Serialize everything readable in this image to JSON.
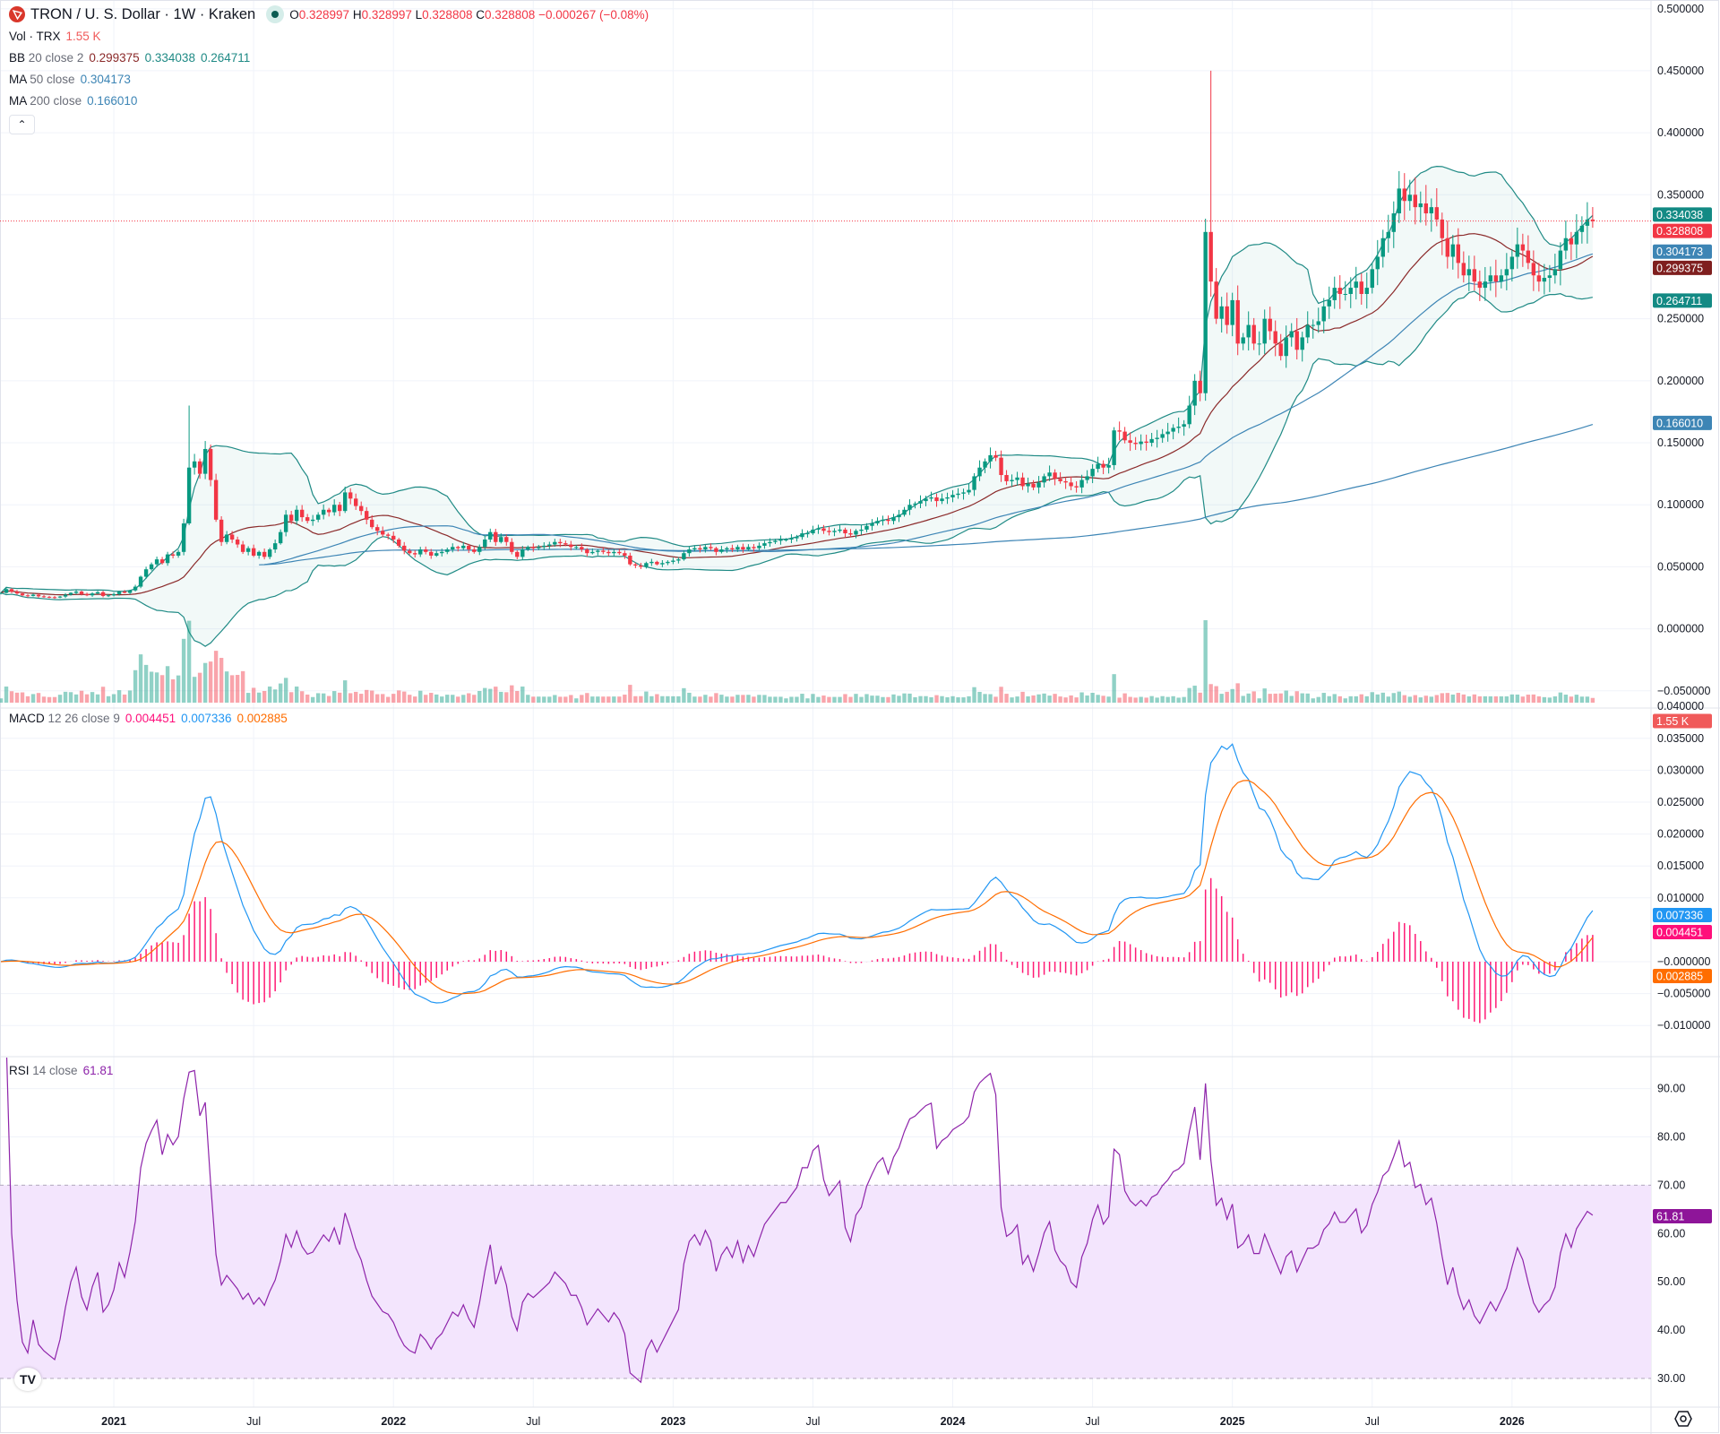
{
  "header": {
    "symbol": "TRON / U. S. Dollar · 1W · Kraken",
    "open_label": "O",
    "open": "0.328997",
    "high_label": "H",
    "high": "0.328997",
    "low_label": "L",
    "low": "0.328808",
    "close_label": "C",
    "close": "0.328808",
    "change": "−0.000267 (−0.08%)"
  },
  "indicators": {
    "vol": {
      "label": "Vol · TRX",
      "value": "1.55 K"
    },
    "bb": {
      "label": "BB",
      "params": "20 close 2",
      "basis": "0.299375",
      "upper": "0.334038",
      "lower": "0.264711"
    },
    "ma50": {
      "label": "MA",
      "params": "50 close",
      "value": "0.304173"
    },
    "ma200": {
      "label": "MA",
      "params": "200 close",
      "value": "0.166010"
    },
    "macd": {
      "label": "MACD",
      "params": "12 26 close 9",
      "hist": "0.004451",
      "macd": "0.007336",
      "signal": "0.002885"
    },
    "rsi": {
      "label": "RSI",
      "params": "14 close",
      "value": "61.81"
    }
  },
  "colors": {
    "up": "#089981",
    "down": "#f23645",
    "bb_basis": "#8b2a2a",
    "bb_band": "#1f8a85",
    "ma50": "#3d85b5",
    "ma200": "#3d85b5",
    "macd": "#2196f3",
    "signal": "#ff6d00",
    "hist": "#ff1a75",
    "rsi": "#8e24aa",
    "rsi_band": "#f3e5fd"
  },
  "chart_data": [
    {
      "type": "candlestick",
      "interval": "1W",
      "x_start": "2020-08-10",
      "yscale": "linear",
      "ylim": [
        -0.05,
        0.5
      ],
      "y_ticks": [
        "0.500000",
        "0.450000",
        "0.400000",
        "0.350000",
        "0.250000",
        "0.200000",
        "0.150000",
        "0.100000",
        "0.050000",
        "0.000000",
        "−0.050000"
      ],
      "y_tick_values": [
        0.5,
        0.45,
        0.4,
        0.35,
        0.25,
        0.2,
        0.15,
        0.1,
        0.05,
        0,
        -0.05
      ],
      "x_ticks": [
        {
          "label": "2021",
          "date": "2021-01-04"
        },
        {
          "label": "Jul",
          "date": "2021-07-05"
        },
        {
          "label": "2022",
          "date": "2022-01-03"
        },
        {
          "label": "Jul",
          "date": "2022-07-04"
        },
        {
          "label": "2023",
          "date": "2023-01-02"
        },
        {
          "label": "Jul",
          "date": "2023-07-03"
        },
        {
          "label": "2024",
          "date": "2024-01-01"
        },
        {
          "label": "Jul",
          "date": "2024-07-01"
        },
        {
          "label": "2025",
          "date": "2024-12-30"
        },
        {
          "label": "Jul",
          "date": "2025-06-30"
        },
        {
          "label": "2026",
          "date": "2025-12-29"
        }
      ],
      "closes": [
        0.029,
        0.032,
        0.03,
        0.0285,
        0.027,
        0.0265,
        0.0275,
        0.0262,
        0.0258,
        0.0255,
        0.0252,
        0.026,
        0.0275,
        0.029,
        0.03,
        0.028,
        0.027,
        0.0285,
        0.0295,
        0.0265,
        0.027,
        0.028,
        0.03,
        0.029,
        0.031,
        0.034,
        0.042,
        0.048,
        0.052,
        0.056,
        0.053,
        0.06,
        0.059,
        0.062,
        0.085,
        0.13,
        0.135,
        0.125,
        0.145,
        0.12,
        0.088,
        0.07,
        0.076,
        0.072,
        0.068,
        0.062,
        0.065,
        0.059,
        0.062,
        0.058,
        0.064,
        0.069,
        0.078,
        0.092,
        0.087,
        0.096,
        0.09,
        0.087,
        0.088,
        0.092,
        0.096,
        0.094,
        0.1,
        0.095,
        0.11,
        0.105,
        0.099,
        0.095,
        0.088,
        0.082,
        0.079,
        0.076,
        0.075,
        0.072,
        0.067,
        0.063,
        0.061,
        0.06,
        0.064,
        0.062,
        0.059,
        0.061,
        0.062,
        0.064,
        0.066,
        0.065,
        0.067,
        0.064,
        0.062,
        0.066,
        0.072,
        0.078,
        0.07,
        0.074,
        0.07,
        0.062,
        0.058,
        0.064,
        0.066,
        0.065,
        0.066,
        0.067,
        0.068,
        0.07,
        0.069,
        0.068,
        0.066,
        0.066,
        0.064,
        0.061,
        0.062,
        0.063,
        0.062,
        0.061,
        0.062,
        0.061,
        0.059,
        0.052,
        0.051,
        0.05,
        0.053,
        0.054,
        0.052,
        0.053,
        0.054,
        0.055,
        0.056,
        0.061,
        0.064,
        0.065,
        0.064,
        0.066,
        0.065,
        0.062,
        0.064,
        0.065,
        0.064,
        0.066,
        0.064,
        0.066,
        0.065,
        0.067,
        0.069,
        0.07,
        0.071,
        0.072,
        0.072,
        0.073,
        0.074,
        0.077,
        0.077,
        0.08,
        0.081,
        0.079,
        0.078,
        0.079,
        0.08,
        0.077,
        0.076,
        0.079,
        0.08,
        0.083,
        0.085,
        0.087,
        0.088,
        0.087,
        0.09,
        0.092,
        0.096,
        0.1,
        0.101,
        0.103,
        0.105,
        0.106,
        0.103,
        0.105,
        0.106,
        0.108,
        0.109,
        0.11,
        0.112,
        0.123,
        0.13,
        0.135,
        0.14,
        0.138,
        0.124,
        0.119,
        0.12,
        0.122,
        0.115,
        0.117,
        0.114,
        0.118,
        0.123,
        0.126,
        0.121,
        0.119,
        0.118,
        0.115,
        0.114,
        0.12,
        0.123,
        0.129,
        0.133,
        0.13,
        0.132,
        0.16,
        0.159,
        0.152,
        0.15,
        0.149,
        0.151,
        0.15,
        0.153,
        0.154,
        0.157,
        0.159,
        0.162,
        0.163,
        0.165,
        0.18,
        0.2,
        0.19,
        0.32,
        0.28,
        0.25,
        0.26,
        0.245,
        0.265,
        0.23,
        0.235,
        0.245,
        0.23,
        0.23,
        0.25,
        0.24,
        0.23,
        0.22,
        0.235,
        0.24,
        0.225,
        0.235,
        0.245,
        0.245,
        0.248,
        0.26,
        0.265,
        0.275,
        0.27,
        0.27,
        0.275,
        0.28,
        0.27,
        0.275,
        0.29,
        0.3,
        0.315,
        0.32,
        0.335,
        0.355,
        0.345,
        0.35,
        0.34,
        0.343,
        0.335,
        0.34,
        0.33,
        0.315,
        0.3,
        0.31,
        0.295,
        0.285,
        0.29,
        0.28,
        0.275,
        0.28,
        0.285,
        0.28,
        0.285,
        0.29,
        0.3,
        0.31,
        0.305,
        0.295,
        0.285,
        0.28,
        0.283,
        0.285,
        0.29,
        0.305,
        0.315,
        0.31,
        0.32,
        0.325,
        0.33,
        0.3288
      ],
      "notable_wicks": [
        {
          "date": "2021-04-12",
          "high": 0.18
        },
        {
          "date": "2024-12-02",
          "high": 0.45
        }
      ],
      "last_price": 0.328808,
      "price_labels": [
        {
          "text": "0.334038",
          "value": 0.334038,
          "color": "#138a84"
        },
        {
          "text": "0.328808",
          "value": 0.328808,
          "color": "#f23645"
        },
        {
          "text": "0.304173",
          "value": 0.304173,
          "color": "#3d85b5"
        },
        {
          "text": "0.299375",
          "value": 0.299375,
          "color": "#7f1f1f"
        },
        {
          "text": "0.264711",
          "value": 0.264711,
          "color": "#138a84"
        },
        {
          "text": "0.166010",
          "value": 0.16601,
          "color": "#3d85b5"
        }
      ],
      "volume_label": {
        "text": "1.55 K",
        "color": "#f05a5a"
      }
    },
    {
      "type": "line",
      "name": "MACD",
      "ylim": [
        -0.012,
        0.037
      ],
      "y_ticks": [
        "0.035000",
        "0.030000",
        "0.025000",
        "0.020000",
        "0.015000",
        "0.010000",
        "−0.000000",
        "−0.005000",
        "−0.010000"
      ],
      "y_tick_values": [
        0.035,
        0.03,
        0.025,
        0.02,
        0.015,
        0.01,
        0,
        -0.005,
        -0.01
      ],
      "top_tick": {
        "text": "0.040000",
        "value": 0.04
      },
      "value_labels": [
        {
          "text": "0.007336",
          "value": 0.007336,
          "color": "#2196f3"
        },
        {
          "text": "0.004451",
          "value": 0.004451,
          "color": "#ff0f7b"
        },
        {
          "text": "0.002885",
          "value": 0.002885,
          "color": "#ff6d00"
        }
      ]
    },
    {
      "type": "line",
      "name": "RSI",
      "ylim": [
        25,
        95
      ],
      "y_ticks": [
        "90.00",
        "80.00",
        "70.00",
        "60.00",
        "50.00",
        "40.00",
        "30.00"
      ],
      "y_tick_values": [
        90,
        80,
        70,
        60,
        50,
        40,
        30
      ],
      "band": [
        30,
        70
      ],
      "value_label": {
        "text": "61.81",
        "value": 61.81,
        "color": "#8e1599"
      }
    }
  ]
}
